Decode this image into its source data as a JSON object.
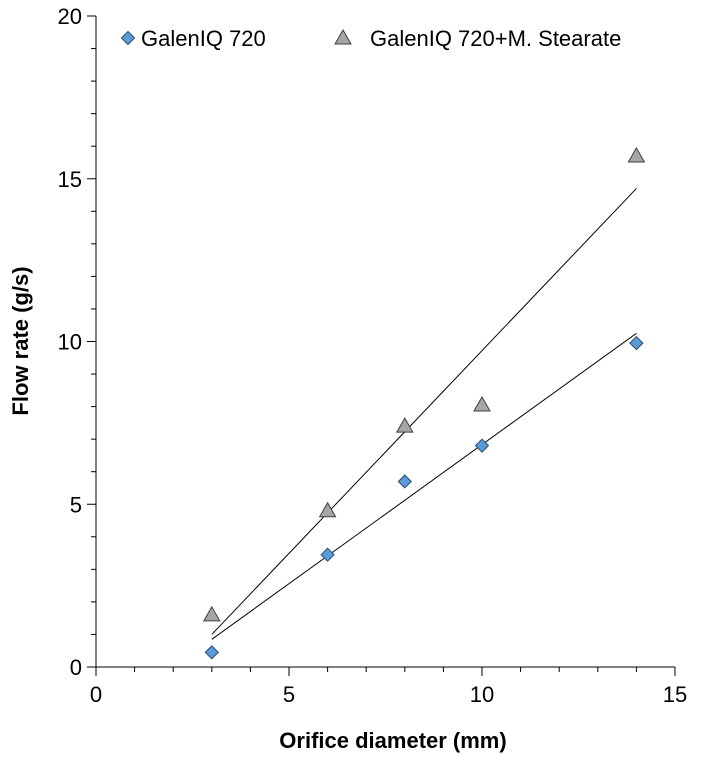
{
  "chart_data": {
    "type": "scatter",
    "xlabel": "Orifice diameter (mm)",
    "ylabel": "Flow rate (g/s)",
    "xlim": [
      0,
      15
    ],
    "ylim": [
      0,
      20
    ],
    "x_ticks": [
      0,
      5,
      10,
      15
    ],
    "y_ticks": [
      0,
      5,
      10,
      15,
      20
    ],
    "x_minor_step": 1,
    "y_minor_step": 1,
    "grid": false,
    "legend_position": "top",
    "series": [
      {
        "name": "GalenIQ 720",
        "marker": "diamond",
        "color": "#5b9bd5",
        "x": [
          3,
          6,
          8,
          10,
          14
        ],
        "y": [
          0.45,
          3.45,
          5.7,
          6.8,
          9.95
        ],
        "trendline": {
          "x": [
            3,
            14
          ],
          "y": [
            0.85,
            10.25
          ]
        }
      },
      {
        "name": "GalenIQ 720+M. Stearate",
        "marker": "triangle",
        "color": "#a6a6a6",
        "x": [
          3,
          6,
          8,
          10,
          14
        ],
        "y": [
          1.6,
          4.8,
          7.4,
          8.05,
          15.7
        ],
        "trendline": {
          "x": [
            3,
            14
          ],
          "y": [
            1.0,
            14.7
          ]
        }
      }
    ]
  }
}
